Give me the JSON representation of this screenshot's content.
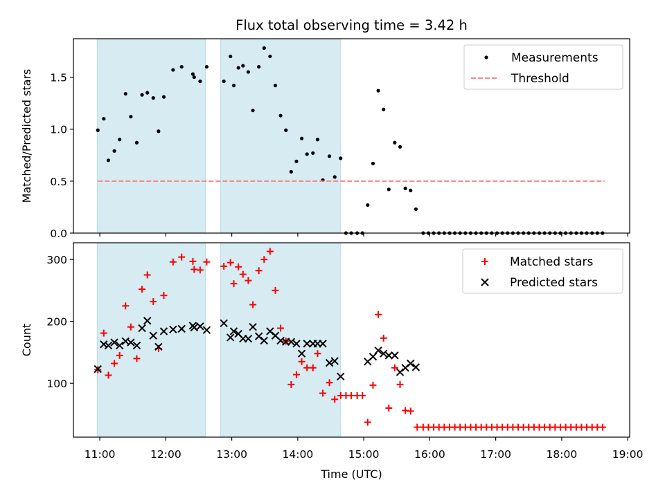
{
  "figure": {
    "title": "Flux total observing time = 3.42 h",
    "xlabel": "Time (UTC)",
    "xticks": [
      {
        "t": 11.0,
        "label": "11:00"
      },
      {
        "t": 12.0,
        "label": "12:00"
      },
      {
        "t": 13.0,
        "label": "13:00"
      },
      {
        "t": 14.0,
        "label": "14:00"
      },
      {
        "t": 15.0,
        "label": "15:00"
      },
      {
        "t": 16.0,
        "label": "16:00"
      },
      {
        "t": 17.0,
        "label": "17:00"
      },
      {
        "t": 18.0,
        "label": "18:00"
      },
      {
        "t": 19.0,
        "label": "19:00"
      }
    ],
    "xlim": [
      10.6,
      19.03
    ],
    "shaded_intervals": [
      [
        10.96,
        12.6
      ],
      [
        12.83,
        14.65
      ]
    ],
    "shade_color": "#add8e6",
    "grid": false
  },
  "chart_data": [
    {
      "type": "scatter",
      "panel": "top",
      "ylabel": "Matched/Predicted stars",
      "ylim": [
        0,
        1.87
      ],
      "yticks": [
        {
          "v": 0.0,
          "label": "0.0"
        },
        {
          "v": 0.5,
          "label": "0.5"
        },
        {
          "v": 1.0,
          "label": "1.0"
        },
        {
          "v": 1.5,
          "label": "1.5"
        }
      ],
      "legend_position": "top-right",
      "series": [
        {
          "name": "Measurements",
          "marker": "dot",
          "color": "#000000",
          "points": [
            [
              10.97,
              0.99
            ],
            [
              11.06,
              1.1
            ],
            [
              11.13,
              0.7
            ],
            [
              11.22,
              0.79
            ],
            [
              11.3,
              0.9
            ],
            [
              11.39,
              1.34
            ],
            [
              11.47,
              1.12
            ],
            [
              11.56,
              0.87
            ],
            [
              11.64,
              1.33
            ],
            [
              11.72,
              1.35
            ],
            [
              11.81,
              1.3
            ],
            [
              11.89,
              0.98
            ],
            [
              11.97,
              1.31
            ],
            [
              12.11,
              1.57
            ],
            [
              12.24,
              1.6
            ],
            [
              12.41,
              1.53
            ],
            [
              12.43,
              1.5
            ],
            [
              12.52,
              1.46
            ],
            [
              12.62,
              1.6
            ],
            [
              12.88,
              1.46
            ],
            [
              12.98,
              1.7
            ],
            [
              13.03,
              1.42
            ],
            [
              13.1,
              1.59
            ],
            [
              13.17,
              1.61
            ],
            [
              13.25,
              1.55
            ],
            [
              13.32,
              1.18
            ],
            [
              13.41,
              1.6
            ],
            [
              13.49,
              1.78
            ],
            [
              13.58,
              1.7
            ],
            [
              13.66,
              1.42
            ],
            [
              13.74,
              1.13
            ],
            [
              13.82,
              0.99
            ],
            [
              13.9,
              0.59
            ],
            [
              13.98,
              0.69
            ],
            [
              14.06,
              0.91
            ],
            [
              14.14,
              0.76
            ],
            [
              14.23,
              0.77
            ],
            [
              14.3,
              0.9
            ],
            [
              14.38,
              0.51
            ],
            [
              14.48,
              0.74
            ],
            [
              14.56,
              0.54
            ],
            [
              14.65,
              0.72
            ],
            [
              14.73,
              0.0
            ],
            [
              14.81,
              0.0
            ],
            [
              14.9,
              0.0
            ],
            [
              14.98,
              0.0
            ],
            [
              15.06,
              0.27
            ],
            [
              15.14,
              0.67
            ],
            [
              15.22,
              1.37
            ],
            [
              15.3,
              1.19
            ],
            [
              15.38,
              0.42
            ],
            [
              15.47,
              0.87
            ],
            [
              15.55,
              0.83
            ],
            [
              15.63,
              0.43
            ],
            [
              15.71,
              0.41
            ],
            [
              15.79,
              0.23
            ],
            [
              15.9,
              0.0
            ],
            [
              15.98,
              0.0
            ],
            [
              16.06,
              0.0
            ],
            [
              16.14,
              0.0
            ],
            [
              16.22,
              0.0
            ],
            [
              16.3,
              0.0
            ],
            [
              16.38,
              0.0
            ],
            [
              16.46,
              0.0
            ],
            [
              16.54,
              0.0
            ],
            [
              16.62,
              0.0
            ],
            [
              16.7,
              0.0
            ],
            [
              16.78,
              0.0
            ],
            [
              16.86,
              0.0
            ],
            [
              16.94,
              0.0
            ],
            [
              17.02,
              0.0
            ],
            [
              17.1,
              0.0
            ],
            [
              17.18,
              0.0
            ],
            [
              17.26,
              0.0
            ],
            [
              17.34,
              0.0
            ],
            [
              17.42,
              0.0
            ],
            [
              17.5,
              0.0
            ],
            [
              17.58,
              0.0
            ],
            [
              17.66,
              0.0
            ],
            [
              17.74,
              0.0
            ],
            [
              17.82,
              0.0
            ],
            [
              17.9,
              0.0
            ],
            [
              17.98,
              0.0
            ],
            [
              18.06,
              0.0
            ],
            [
              18.14,
              0.0
            ],
            [
              18.22,
              0.0
            ],
            [
              18.3,
              0.0
            ],
            [
              18.38,
              0.0
            ],
            [
              18.46,
              0.0
            ],
            [
              18.54,
              0.0
            ],
            [
              18.62,
              0.0
            ]
          ]
        },
        {
          "name": "Threshold",
          "marker": "dashed-line",
          "color": "#ff7f7f",
          "points": [
            [
              10.97,
              0.5
            ],
            [
              18.65,
              0.5
            ]
          ]
        }
      ]
    },
    {
      "type": "scatter",
      "panel": "bottom",
      "ylabel": "Count",
      "ylim": [
        13,
        327
      ],
      "yticks": [
        {
          "v": 100,
          "label": "100"
        },
        {
          "v": 200,
          "label": "200"
        },
        {
          "v": 300,
          "label": "300"
        }
      ],
      "legend_position": "top-right",
      "series": [
        {
          "name": "Matched stars",
          "marker": "plus",
          "color": "#ff0000",
          "points": [
            [
              10.97,
              122
            ],
            [
              11.06,
              181
            ],
            [
              11.13,
              113
            ],
            [
              11.22,
              132
            ],
            [
              11.3,
              145
            ],
            [
              11.39,
              225
            ],
            [
              11.47,
              191
            ],
            [
              11.56,
              140
            ],
            [
              11.64,
              252
            ],
            [
              11.72,
              275
            ],
            [
              11.81,
              232
            ],
            [
              11.89,
              156
            ],
            [
              11.97,
              242
            ],
            [
              12.11,
              296
            ],
            [
              12.24,
              304
            ],
            [
              12.41,
              297
            ],
            [
              12.43,
              284
            ],
            [
              12.52,
              283
            ],
            [
              12.62,
              296
            ],
            [
              12.88,
              289
            ],
            [
              12.98,
              295
            ],
            [
              13.03,
              261
            ],
            [
              13.1,
              288
            ],
            [
              13.17,
              276
            ],
            [
              13.25,
              266
            ],
            [
              13.32,
              227
            ],
            [
              13.41,
              282
            ],
            [
              13.49,
              300
            ],
            [
              13.58,
              313
            ],
            [
              13.66,
              250
            ],
            [
              13.74,
              189
            ],
            [
              13.82,
              168
            ],
            [
              13.9,
              98
            ],
            [
              13.98,
              114
            ],
            [
              14.06,
              135
            ],
            [
              14.14,
              125
            ],
            [
              14.23,
              125
            ],
            [
              14.3,
              148
            ],
            [
              14.38,
              84
            ],
            [
              14.48,
              101
            ],
            [
              14.56,
              74
            ],
            [
              14.65,
              80
            ],
            [
              14.73,
              80
            ],
            [
              14.81,
              80
            ],
            [
              14.9,
              80
            ],
            [
              14.98,
              80
            ],
            [
              15.06,
              37
            ],
            [
              15.14,
              97
            ],
            [
              15.22,
              211
            ],
            [
              15.3,
              173
            ],
            [
              15.38,
              60
            ],
            [
              15.47,
              125
            ],
            [
              15.55,
              98
            ],
            [
              15.63,
              56
            ],
            [
              15.71,
              55
            ],
            [
              15.81,
              29
            ],
            [
              15.9,
              29
            ],
            [
              15.98,
              29
            ],
            [
              16.06,
              29
            ],
            [
              16.14,
              29
            ],
            [
              16.22,
              29
            ],
            [
              16.3,
              29
            ],
            [
              16.38,
              29
            ],
            [
              16.46,
              29
            ],
            [
              16.54,
              29
            ],
            [
              16.62,
              29
            ],
            [
              16.7,
              29
            ],
            [
              16.78,
              29
            ],
            [
              16.86,
              29
            ],
            [
              16.94,
              29
            ],
            [
              17.02,
              29
            ],
            [
              17.1,
              29
            ],
            [
              17.18,
              29
            ],
            [
              17.26,
              29
            ],
            [
              17.34,
              29
            ],
            [
              17.42,
              29
            ],
            [
              17.5,
              29
            ],
            [
              17.58,
              29
            ],
            [
              17.66,
              29
            ],
            [
              17.74,
              29
            ],
            [
              17.82,
              29
            ],
            [
              17.9,
              29
            ],
            [
              17.98,
              29
            ],
            [
              18.06,
              29
            ],
            [
              18.14,
              29
            ],
            [
              18.22,
              29
            ],
            [
              18.3,
              29
            ],
            [
              18.38,
              29
            ],
            [
              18.46,
              29
            ],
            [
              18.54,
              29
            ],
            [
              18.62,
              29
            ]
          ]
        },
        {
          "name": "Predicted stars",
          "marker": "x",
          "color": "#000000",
          "points": [
            [
              10.97,
              123
            ],
            [
              11.06,
              163
            ],
            [
              11.13,
              161
            ],
            [
              11.22,
              166
            ],
            [
              11.3,
              161
            ],
            [
              11.39,
              168
            ],
            [
              11.47,
              166
            ],
            [
              11.56,
              161
            ],
            [
              11.64,
              189
            ],
            [
              11.72,
              201
            ],
            [
              11.81,
              177
            ],
            [
              11.89,
              159
            ],
            [
              11.97,
              184
            ],
            [
              12.11,
              187
            ],
            [
              12.24,
              188
            ],
            [
              12.41,
              193
            ],
            [
              12.43,
              190
            ],
            [
              12.52,
              192
            ],
            [
              12.62,
              186
            ],
            [
              12.88,
              197
            ],
            [
              12.98,
              174
            ],
            [
              13.03,
              184
            ],
            [
              13.1,
              180
            ],
            [
              13.17,
              172
            ],
            [
              13.25,
              172
            ],
            [
              13.32,
              191
            ],
            [
              13.41,
              176
            ],
            [
              13.49,
              169
            ],
            [
              13.58,
              184
            ],
            [
              13.66,
              177
            ],
            [
              13.74,
              169
            ],
            [
              13.82,
              167
            ],
            [
              13.9,
              167
            ],
            [
              13.98,
              164
            ],
            [
              14.06,
              148
            ],
            [
              14.14,
              164
            ],
            [
              14.23,
              164
            ],
            [
              14.3,
              164
            ],
            [
              14.38,
              164
            ],
            [
              14.48,
              133
            ],
            [
              14.56,
              136
            ],
            [
              14.65,
              111
            ],
            [
              15.06,
              135
            ],
            [
              15.14,
              143
            ],
            [
              15.22,
              153
            ],
            [
              15.3,
              148
            ],
            [
              15.38,
              145
            ],
            [
              15.47,
              145
            ],
            [
              15.55,
              118
            ],
            [
              15.63,
              125
            ],
            [
              15.71,
              132
            ],
            [
              15.79,
              126
            ]
          ]
        }
      ]
    }
  ]
}
